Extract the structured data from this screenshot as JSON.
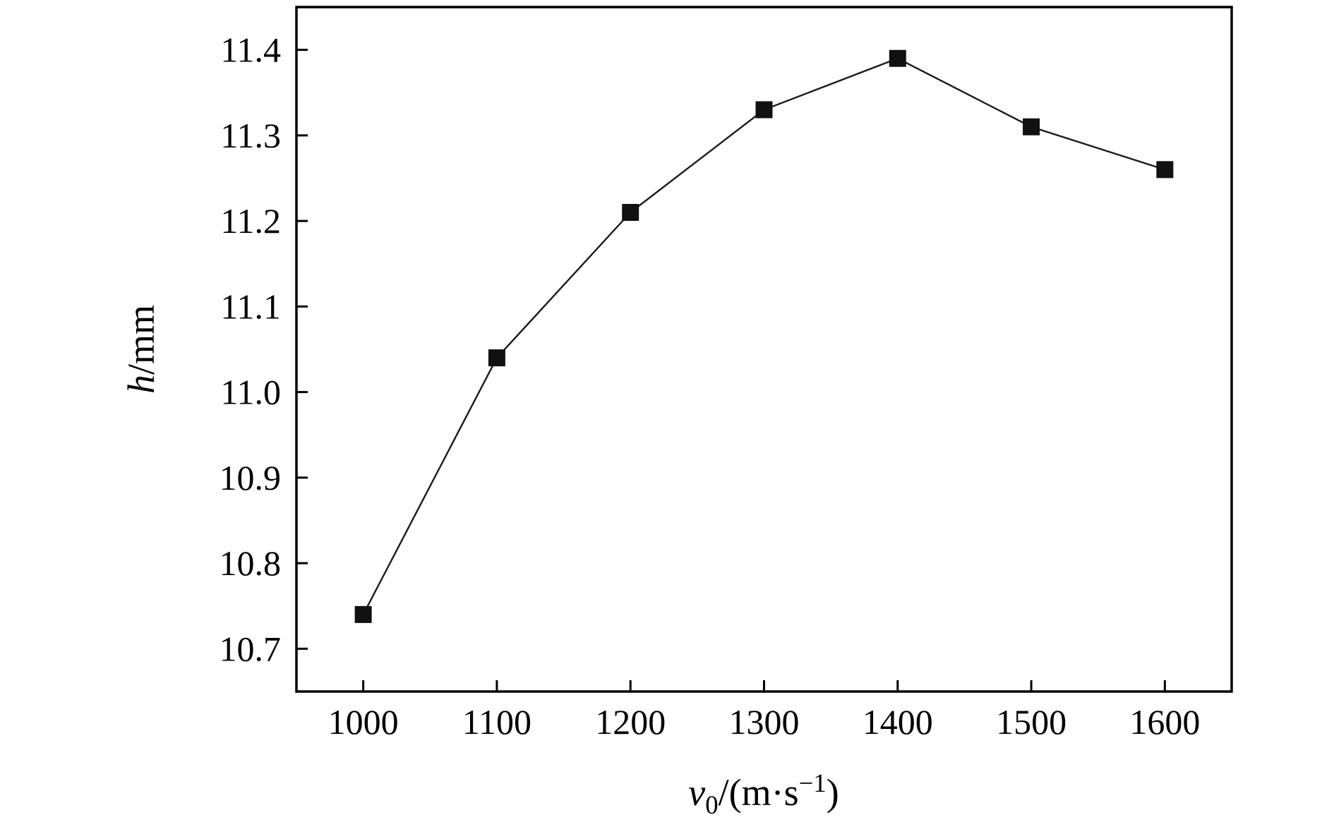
{
  "chart_data": {
    "type": "line",
    "title": "",
    "x": [
      1000,
      1100,
      1200,
      1300,
      1400,
      1500,
      1600
    ],
    "y": [
      10.74,
      11.04,
      11.21,
      11.33,
      11.39,
      11.31,
      11.26
    ],
    "marker": "filled-square",
    "x_ticks": [
      "1000",
      "1100",
      "1200",
      "1300",
      "1400",
      "1500",
      "1600"
    ],
    "y_ticks": [
      "10.7",
      "10.8",
      "10.9",
      "11.0",
      "11.1",
      "11.2",
      "11.3",
      "11.4"
    ],
    "y_tick_values": [
      10.7,
      10.8,
      10.9,
      11.0,
      11.1,
      11.2,
      11.3,
      11.4
    ],
    "xlim": [
      950,
      1650
    ],
    "ylim": [
      10.65,
      11.45
    ],
    "xlabel": {
      "var": "v",
      "sub": "0",
      "rest": "/(m·s",
      "sup": "−1",
      "end": ")"
    },
    "ylabel": {
      "var": "h",
      "rest": "/mm"
    },
    "legend": "none",
    "grid": false,
    "colors": {
      "line": "#1a1a1a",
      "marker": "#111111",
      "axis": "#000000",
      "background": "#ffffff",
      "text": "#000000"
    }
  }
}
